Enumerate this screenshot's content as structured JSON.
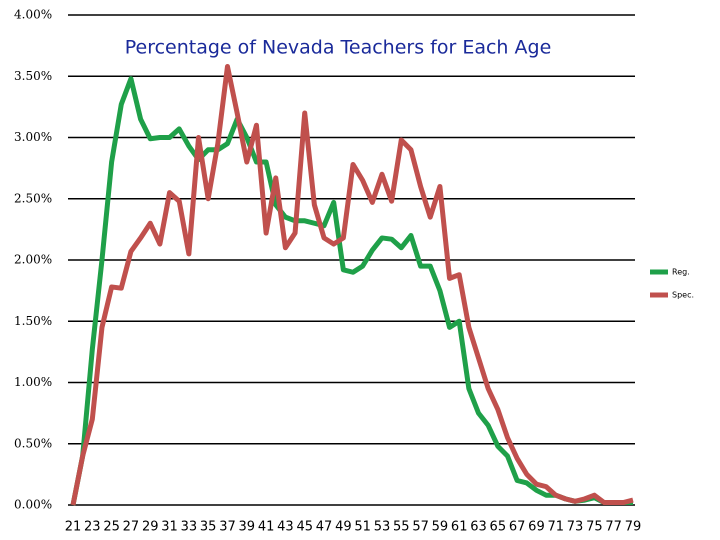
{
  "chart_data": {
    "type": "line",
    "title": "Percentage of Nevada Teachers for Each Age",
    "categories": [
      "21",
      null,
      "23",
      null,
      "25",
      null,
      "27",
      null,
      "29",
      null,
      "31",
      null,
      "33",
      null,
      "35",
      null,
      "37",
      null,
      "39",
      null,
      "41",
      null,
      "43",
      null,
      "45",
      null,
      "47",
      null,
      "49",
      null,
      "51",
      null,
      "53",
      null,
      "55",
      null,
      "57",
      null,
      "59",
      null,
      "61",
      null,
      "63",
      null,
      "65",
      null,
      "67",
      null,
      "69",
      null,
      "71",
      null,
      "73",
      null,
      "75",
      null,
      "77",
      null,
      "79"
    ],
    "series": [
      {
        "name": "Reg.",
        "color": "#1fa049",
        "values": [
          0,
          0.4,
          1.27,
          2.0,
          2.8,
          3.27,
          3.48,
          3.15,
          2.99,
          3.0,
          3.0,
          3.07,
          2.93,
          2.82,
          2.9,
          2.9,
          2.95,
          3.15,
          3.0,
          2.8,
          2.8,
          2.45,
          2.35,
          2.32,
          2.32,
          2.3,
          2.28,
          2.47,
          1.92,
          1.9,
          1.95,
          2.08,
          2.18,
          2.17,
          2.1,
          2.2,
          1.95,
          1.95,
          1.75,
          1.45,
          1.5,
          0.95,
          0.75,
          0.65,
          0.48,
          0.4,
          0.2,
          0.18,
          0.12,
          0.08,
          0.08,
          0.05,
          0.03,
          0.04,
          0.06,
          0.02,
          0.02,
          0.02,
          0.02
        ]
      },
      {
        "name": "Spec.",
        "color": "#c0504d",
        "values": [
          0,
          0.4,
          0.7,
          1.45,
          1.78,
          1.77,
          2.07,
          2.18,
          2.3,
          2.13,
          2.55,
          2.48,
          2.05,
          3.0,
          2.5,
          2.95,
          3.58,
          3.2,
          2.8,
          3.1,
          2.22,
          2.67,
          2.1,
          2.22,
          3.2,
          2.45,
          2.18,
          2.13,
          2.18,
          2.78,
          2.65,
          2.47,
          2.7,
          2.48,
          2.98,
          2.9,
          2.6,
          2.35,
          2.6,
          1.85,
          1.88,
          1.45,
          1.2,
          0.95,
          0.78,
          0.55,
          0.38,
          0.25,
          0.17,
          0.15,
          0.08,
          0.05,
          0.03,
          0.05,
          0.08,
          0.02,
          0.02,
          0.02,
          0.04
        ]
      }
    ],
    "ylim": [
      0,
      4
    ],
    "yticks": [
      {
        "value": 0,
        "label": "0.00%"
      },
      {
        "value": 0.5,
        "label": "0.50%"
      },
      {
        "value": 1,
        "label": "1.00%"
      },
      {
        "value": 1.5,
        "label": "1.50%"
      },
      {
        "value": 2,
        "label": "2.00%"
      },
      {
        "value": 2.5,
        "label": "2.50%"
      },
      {
        "value": 3,
        "label": "3.00%"
      },
      {
        "value": 3.5,
        "label": "3.50%"
      },
      {
        "value": 4,
        "label": "4.00%"
      }
    ],
    "grid": true,
    "legend": "right"
  }
}
